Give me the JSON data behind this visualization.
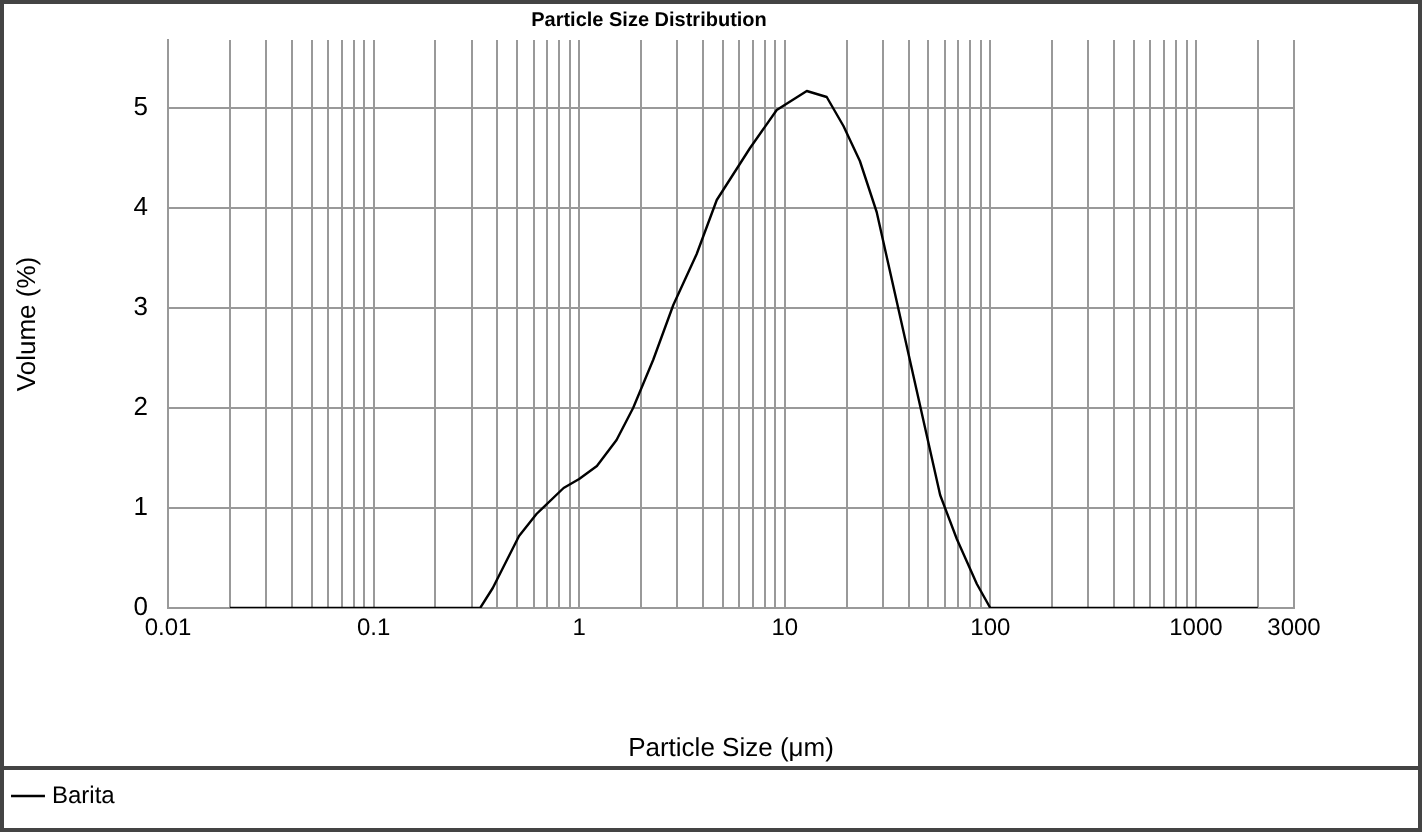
{
  "chart_data": {
    "type": "line",
    "title": "Particle Size Distribution",
    "xlabel": "Particle Size (μm)",
    "ylabel": "Volume (%)",
    "log": "x",
    "grid": true,
    "legend": "bottom left",
    "marker": "none",
    "line_style": "solid",
    "xlim": [
      0.01,
      3000
    ],
    "ylim": [
      0,
      5.68
    ],
    "yticks": [
      0,
      1,
      2,
      3,
      4,
      5
    ],
    "xticks": [
      0.01,
      {
        "value": 0.02,
        "label": null
      },
      {
        "value": 0.03,
        "label": null
      },
      {
        "value": 0.04,
        "label": null
      },
      {
        "value": 0.05,
        "label": null
      },
      {
        "value": 0.06,
        "label": null
      },
      {
        "value": 0.07,
        "label": null
      },
      {
        "value": 0.08,
        "label": null
      },
      {
        "value": 0.09,
        "label": null
      },
      0.1,
      {
        "value": 0.2,
        "label": null
      },
      {
        "value": 0.3,
        "label": null
      },
      {
        "value": 0.4,
        "label": null
      },
      {
        "value": 0.5,
        "label": null
      },
      {
        "value": 0.6,
        "label": null
      },
      {
        "value": 0.7,
        "label": null
      },
      {
        "value": 0.8,
        "label": null
      },
      {
        "value": 0.9,
        "label": null
      },
      1,
      {
        "value": 2,
        "label": null
      },
      {
        "value": 3,
        "label": null
      },
      {
        "value": 4,
        "label": null
      },
      {
        "value": 5,
        "label": null
      },
      {
        "value": 6,
        "label": null
      },
      {
        "value": 7,
        "label": null
      },
      {
        "value": 8,
        "label": null
      },
      {
        "value": 9,
        "label": null
      },
      10,
      {
        "value": 20,
        "label": null
      },
      {
        "value": 30,
        "label": null
      },
      {
        "value": 40,
        "label": null
      },
      {
        "value": 50,
        "label": null
      },
      {
        "value": 60,
        "label": null
      },
      {
        "value": 70,
        "label": null
      },
      {
        "value": 80,
        "label": null
      },
      {
        "value": 90,
        "label": null
      },
      100,
      {
        "value": 200,
        "label": null
      },
      {
        "value": 300,
        "label": null
      },
      {
        "value": 400,
        "label": null
      },
      {
        "value": 500,
        "label": null
      },
      {
        "value": 600,
        "label": null
      },
      {
        "value": 700,
        "label": null
      },
      {
        "value": 800,
        "label": null
      },
      {
        "value": 900,
        "label": null
      },
      1000,
      {
        "value": 2000,
        "label": null
      },
      3000
    ],
    "series": [
      {
        "name": "Barita",
        "color": "#000000",
        "x": [
          0.02,
          0.33,
          0.38,
          0.51,
          0.62,
          0.84,
          1.0,
          1.22,
          1.52,
          1.83,
          2.29,
          2.87,
          3.73,
          4.67,
          6.78,
          9.14,
          12.8,
          16.0,
          19.3,
          23.2,
          28.0,
          35.1,
          44.0,
          57.0,
          68.7,
          86,
          100,
          2000
        ],
        "values": [
          0,
          0,
          0.2,
          0.72,
          0.94,
          1.2,
          1.29,
          1.42,
          1.68,
          2.0,
          2.48,
          3.03,
          3.54,
          4.08,
          4.6,
          4.98,
          5.17,
          5.11,
          4.82,
          4.47,
          3.96,
          3.06,
          2.16,
          1.13,
          0.69,
          0.24,
          0,
          0
        ]
      }
    ]
  }
}
